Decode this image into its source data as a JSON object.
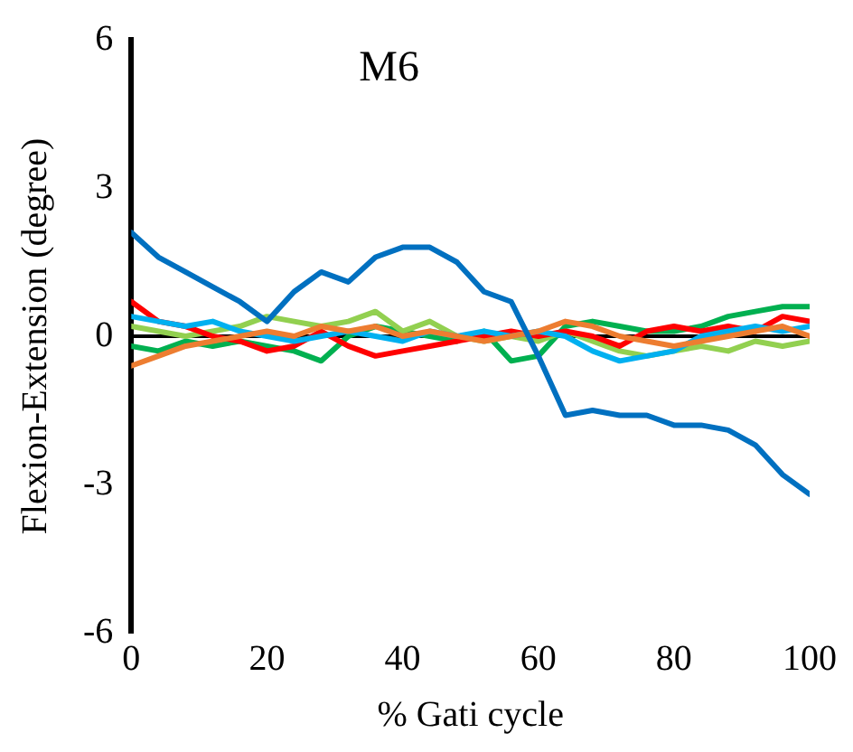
{
  "chart_data": {
    "type": "line",
    "title": "M6",
    "xlabel": "% Gati cycle",
    "ylabel": "Flexion-Extension (degree)",
    "x": [
      0,
      4,
      8,
      12,
      16,
      20,
      24,
      28,
      32,
      36,
      40,
      44,
      48,
      52,
      56,
      60,
      64,
      68,
      72,
      76,
      80,
      84,
      88,
      92,
      96,
      100
    ],
    "xlim": [
      0,
      100
    ],
    "xticks": [
      0,
      20,
      40,
      60,
      80,
      100
    ],
    "ylim": [
      -6,
      6
    ],
    "yticks": [
      -6,
      -3,
      0,
      3,
      6
    ],
    "grid": false,
    "legend": false,
    "marker": "none",
    "line_style": "solid",
    "ref_lines": [
      {
        "axis": "y",
        "value": 0,
        "color": "#000000"
      }
    ],
    "series": [
      {
        "color": "#0070c0",
        "values": [
          2.1,
          1.6,
          1.3,
          1.0,
          0.7,
          0.3,
          0.9,
          1.3,
          1.1,
          1.6,
          1.8,
          1.8,
          1.5,
          0.9,
          0.7,
          -0.4,
          -1.6,
          -1.5,
          -1.6,
          -1.6,
          -1.8,
          -1.8,
          -1.9,
          -2.2,
          -2.8,
          -3.2
        ]
      },
      {
        "color": "#ed7d31",
        "values": [
          -0.6,
          -0.4,
          -0.2,
          -0.1,
          0.0,
          0.1,
          0.0,
          0.2,
          0.1,
          0.2,
          0.0,
          0.1,
          0.0,
          -0.1,
          0.0,
          0.1,
          0.3,
          0.2,
          0.0,
          -0.1,
          -0.2,
          -0.1,
          0.0,
          0.1,
          0.2,
          0.0
        ]
      },
      {
        "color": "#00b0f0",
        "values": [
          0.4,
          0.3,
          0.2,
          0.3,
          0.1,
          0.0,
          -0.1,
          0.0,
          0.1,
          0.0,
          -0.1,
          0.1,
          0.0,
          0.1,
          0.0,
          0.1,
          0.0,
          -0.3,
          -0.5,
          -0.4,
          -0.3,
          0.0,
          0.1,
          0.2,
          0.1,
          0.2
        ]
      },
      {
        "color": "#ff0000",
        "values": [
          0.7,
          0.3,
          0.2,
          0.0,
          -0.1,
          -0.3,
          -0.2,
          0.1,
          -0.2,
          -0.4,
          -0.3,
          -0.2,
          -0.1,
          0.0,
          0.1,
          0.0,
          0.1,
          0.0,
          -0.2,
          0.1,
          0.2,
          0.1,
          0.2,
          0.1,
          0.4,
          0.3
        ]
      },
      {
        "color": "#92d050",
        "values": [
          0.2,
          0.1,
          0.0,
          0.1,
          0.2,
          0.4,
          0.3,
          0.2,
          0.3,
          0.5,
          0.1,
          0.3,
          0.0,
          -0.1,
          0.0,
          -0.1,
          0.1,
          -0.1,
          -0.3,
          -0.4,
          -0.3,
          -0.2,
          -0.3,
          -0.1,
          -0.2,
          -0.1
        ]
      },
      {
        "color": "#00b050",
        "values": [
          -0.2,
          -0.3,
          -0.1,
          -0.2,
          -0.1,
          -0.2,
          -0.3,
          -0.5,
          0.0,
          0.2,
          0.1,
          0.0,
          -0.1,
          0.1,
          -0.5,
          -0.4,
          0.2,
          0.3,
          0.2,
          0.1,
          0.1,
          0.2,
          0.4,
          0.5,
          0.6,
          0.6
        ]
      }
    ]
  }
}
